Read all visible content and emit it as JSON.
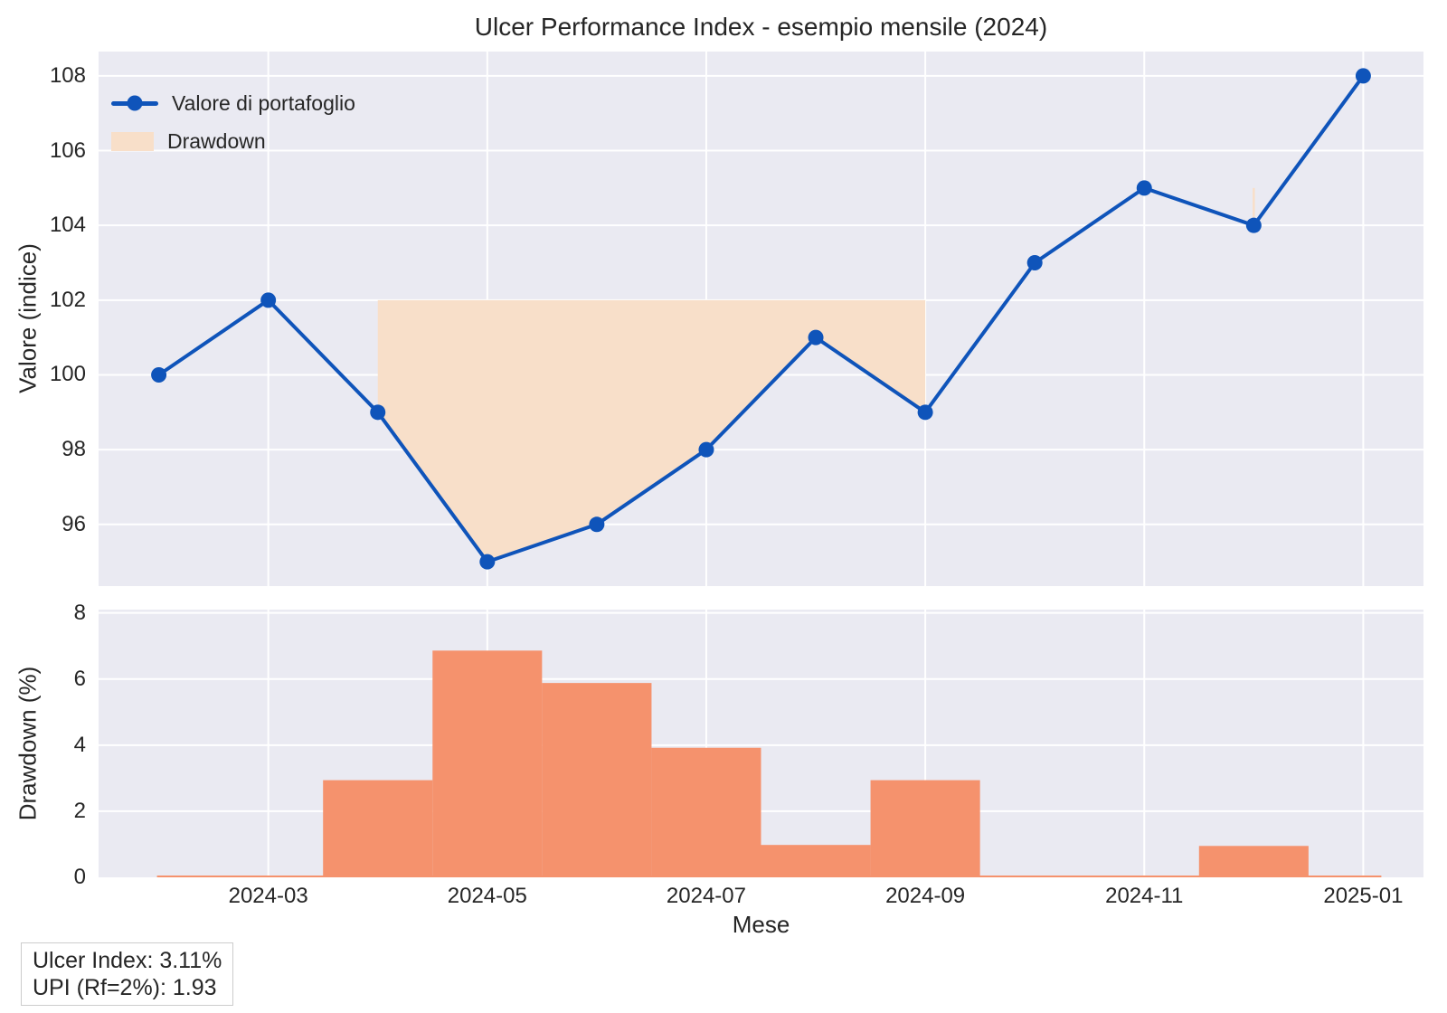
{
  "title": "Ulcer Performance Index - esempio mensile (2024)",
  "legend": {
    "items": [
      {
        "label": "Valore di portafoglio",
        "marker": "line-with-dot"
      },
      {
        "label": "Drawdown",
        "marker": "filled-patch"
      }
    ]
  },
  "annotation": {
    "lines": [
      "Ulcer Index: 3.11%",
      "UPI (Rf=2%): 1.93"
    ]
  },
  "colors": {
    "line": "#0f54ba",
    "bar": "#f5926d",
    "fill": "#f8dfc9",
    "plot_bg": "#eaeaf2",
    "grid": "#ffffff",
    "text": "#262626",
    "annotation_border": "#cccccc"
  },
  "chart_data": [
    {
      "type": "line",
      "title": "Ulcer Performance Index - esempio mensile (2024)",
      "x": [
        "2024-02",
        "2024-03",
        "2024-04",
        "2024-05",
        "2024-06",
        "2024-07",
        "2024-08",
        "2024-09",
        "2024-10",
        "2024-11",
        "2024-12",
        "2025-01"
      ],
      "series": [
        {
          "name": "Valore di portafoglio",
          "values": [
            100,
            102,
            99,
            95,
            96,
            98,
            101,
            99,
            103,
            105,
            104,
            108
          ]
        }
      ],
      "running_max": [
        100,
        102,
        102,
        102,
        102,
        102,
        102,
        102,
        103,
        105,
        105,
        108
      ],
      "fill_between": {
        "name": "Drawdown",
        "upper": "running_max",
        "lower": "values",
        "where": "drawdown > 0"
      },
      "ylabel": "Valore (indice)",
      "yticks": [
        96,
        98,
        100,
        102,
        104,
        106,
        108
      ],
      "ylim": [
        94.35,
        108.65
      ],
      "xtick_index": [
        1,
        3,
        5,
        7,
        9,
        11
      ],
      "xtick_labels": [
        "2024-03",
        "2024-05",
        "2024-07",
        "2024-09",
        "2024-11",
        "2025-01"
      ],
      "grid": true,
      "legend_position": "upper left"
    },
    {
      "type": "bar",
      "x": [
        "2024-02",
        "2024-03",
        "2024-04",
        "2024-05",
        "2024-06",
        "2024-07",
        "2024-08",
        "2024-09",
        "2024-10",
        "2024-11",
        "2024-12",
        "2025-01"
      ],
      "values": [
        0,
        0,
        2.94,
        6.86,
        5.88,
        3.92,
        0.98,
        2.94,
        0,
        0,
        0.95,
        0
      ],
      "bar_style": "step-mid",
      "ylabel": "Drawdown (%)",
      "xlabel": "Mese",
      "yticks": [
        0,
        2,
        4,
        6,
        8
      ],
      "ylim": [
        0,
        8.1
      ],
      "xtick_index": [
        1,
        3,
        5,
        7,
        9,
        11
      ],
      "xtick_labels": [
        "2024-03",
        "2024-05",
        "2024-07",
        "2024-09",
        "2024-11",
        "2025-01"
      ],
      "grid": true
    }
  ]
}
